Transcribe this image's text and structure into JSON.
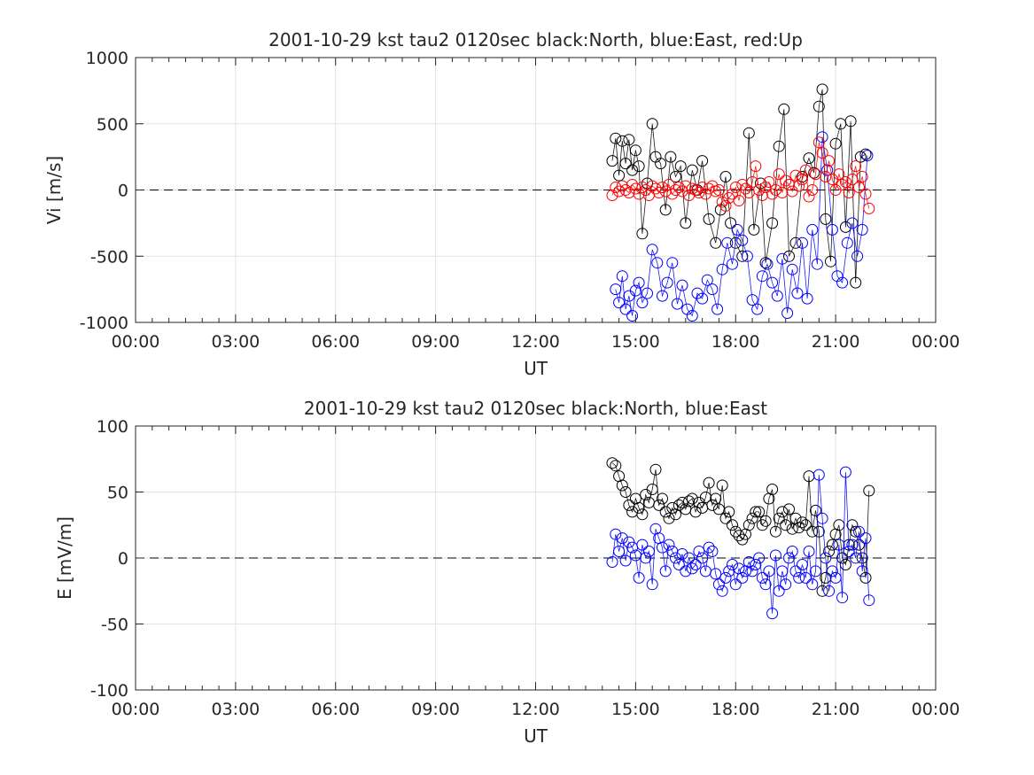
{
  "chart_data": [
    {
      "type": "scatter",
      "title": "2001-10-29 kst tau2 0120sec black:North, blue:East, red:Up",
      "xlabel": "UT",
      "ylabel": "Vi [m/s]",
      "xlim": [
        0,
        24
      ],
      "ylim": [
        -1000,
        1000
      ],
      "x_tick_labels": [
        "00:00",
        "03:00",
        "06:00",
        "09:00",
        "12:00",
        "15:00",
        "18:00",
        "21:00",
        "00:00"
      ],
      "y_ticks": [
        -1000,
        -500,
        0,
        500,
        1000
      ],
      "grid": true,
      "zero_line": "dashed",
      "x_unit": "hours UT",
      "colors": {
        "North": "#000000",
        "East": "#0000ff",
        "Up": "#ff0000"
      },
      "series": [
        {
          "name": "North",
          "color": "#000000",
          "marker": "circle",
          "x": [
            14.3,
            14.4,
            14.5,
            14.6,
            14.7,
            14.8,
            14.9,
            15.0,
            15.1,
            15.2,
            15.35,
            15.5,
            15.6,
            15.75,
            15.9,
            16.05,
            16.2,
            16.35,
            16.5,
            16.7,
            16.85,
            17.0,
            17.2,
            17.4,
            17.55,
            17.7,
            17.85,
            18.0,
            18.2,
            18.4,
            18.55,
            18.75,
            18.9,
            19.1,
            19.3,
            19.45,
            19.6,
            19.8,
            20.0,
            20.2,
            20.35,
            20.5,
            20.6,
            20.7,
            20.85,
            21.0,
            21.15,
            21.3,
            21.45,
            21.6,
            21.75,
            21.9
          ],
          "y": [
            220,
            390,
            110,
            370,
            200,
            380,
            150,
            300,
            180,
            -330,
            50,
            500,
            250,
            200,
            -150,
            250,
            100,
            180,
            -250,
            150,
            0,
            220,
            -220,
            -400,
            -150,
            100,
            -250,
            -400,
            -500,
            430,
            -300,
            50,
            -550,
            -250,
            330,
            610,
            -500,
            -400,
            100,
            240,
            130,
            630,
            760,
            -220,
            -540,
            350,
            500,
            -280,
            520,
            -700,
            250,
            270
          ]
        },
        {
          "name": "East",
          "color": "#0000ff",
          "marker": "circle",
          "x": [
            14.4,
            14.5,
            14.6,
            14.7,
            14.8,
            14.9,
            15.0,
            15.1,
            15.2,
            15.35,
            15.5,
            15.65,
            15.8,
            15.95,
            16.1,
            16.25,
            16.4,
            16.55,
            16.7,
            16.85,
            17.0,
            17.15,
            17.3,
            17.45,
            17.6,
            17.75,
            17.9,
            18.05,
            18.2,
            18.35,
            18.5,
            18.65,
            18.8,
            18.95,
            19.1,
            19.25,
            19.4,
            19.55,
            19.7,
            19.85,
            20.0,
            20.15,
            20.3,
            20.45,
            20.6,
            20.75,
            20.9,
            21.05,
            21.2,
            21.35,
            21.5,
            21.65,
            21.8,
            21.95
          ],
          "y": [
            -750,
            -850,
            -650,
            -900,
            -800,
            -950,
            -760,
            -700,
            -850,
            -780,
            -450,
            -550,
            -800,
            -700,
            -550,
            -860,
            -720,
            -900,
            -950,
            -780,
            -820,
            -680,
            -750,
            -900,
            -600,
            -400,
            -560,
            -300,
            -380,
            -500,
            -830,
            -900,
            -650,
            -560,
            -700,
            -800,
            -520,
            -930,
            -600,
            -780,
            -400,
            -820,
            -300,
            -560,
            400,
            150,
            -300,
            -650,
            -700,
            -400,
            -250,
            -500,
            -300,
            260
          ]
        },
        {
          "name": "Up",
          "color": "#ff0000",
          "marker": "circle",
          "x": [
            14.3,
            14.4,
            14.5,
            14.6,
            14.7,
            14.8,
            14.9,
            15.0,
            15.1,
            15.2,
            15.3,
            15.4,
            15.5,
            15.6,
            15.7,
            15.8,
            15.9,
            16.0,
            16.1,
            16.2,
            16.3,
            16.4,
            16.5,
            16.6,
            16.7,
            16.8,
            16.9,
            17.0,
            17.1,
            17.2,
            17.3,
            17.4,
            17.5,
            17.6,
            17.7,
            17.8,
            17.9,
            18.0,
            18.1,
            18.2,
            18.3,
            18.4,
            18.5,
            18.6,
            18.7,
            18.8,
            18.9,
            19.0,
            19.1,
            19.2,
            19.3,
            19.4,
            19.5,
            19.6,
            19.7,
            19.8,
            19.9,
            20.0,
            20.1,
            20.2,
            20.3,
            20.4,
            20.5,
            20.6,
            20.7,
            20.8,
            20.9,
            21.0,
            21.1,
            21.2,
            21.3,
            21.4,
            21.5,
            21.6,
            21.7,
            21.8,
            21.9,
            22.0
          ],
          "y": [
            -40,
            20,
            -10,
            30,
            0,
            -20,
            40,
            10,
            -30,
            20,
            0,
            -40,
            30,
            10,
            -20,
            20,
            -10,
            40,
            -30,
            0,
            20,
            -10,
            30,
            -40,
            10,
            0,
            -20,
            20,
            -30,
            10,
            30,
            -10,
            0,
            -90,
            -120,
            -60,
            -30,
            20,
            -80,
            40,
            10,
            -20,
            60,
            180,
            0,
            -40,
            20,
            60,
            -30,
            0,
            120,
            -20,
            70,
            40,
            -10,
            110,
            30,
            80,
            150,
            -50,
            0,
            120,
            360,
            280,
            100,
            220,
            80,
            0,
            120,
            40,
            60,
            -20,
            80,
            180,
            20,
            100,
            -30,
            -140
          ]
        }
      ]
    },
    {
      "type": "scatter",
      "title": "2001-10-29 kst tau2 0120sec black:North, blue:East",
      "xlabel": "UT",
      "ylabel": "E [mV/m]",
      "xlim": [
        0,
        24
      ],
      "ylim": [
        -100,
        100
      ],
      "x_tick_labels": [
        "00:00",
        "03:00",
        "06:00",
        "09:00",
        "12:00",
        "15:00",
        "18:00",
        "21:00",
        "00:00"
      ],
      "y_ticks": [
        -100,
        -50,
        0,
        50,
        100
      ],
      "grid": true,
      "zero_line": "dashed",
      "x_unit": "hours UT",
      "colors": {
        "North": "#000000",
        "East": "#0000ff"
      },
      "series": [
        {
          "name": "North",
          "color": "#000000",
          "marker": "circle",
          "x": [
            14.3,
            14.4,
            14.5,
            14.6,
            14.7,
            14.8,
            14.9,
            15.0,
            15.1,
            15.2,
            15.3,
            15.4,
            15.5,
            15.6,
            15.7,
            15.8,
            15.9,
            16.0,
            16.1,
            16.2,
            16.3,
            16.4,
            16.5,
            16.6,
            16.7,
            16.8,
            16.9,
            17.0,
            17.1,
            17.2,
            17.3,
            17.4,
            17.5,
            17.6,
            17.7,
            17.8,
            17.9,
            18.0,
            18.1,
            18.2,
            18.3,
            18.4,
            18.5,
            18.6,
            18.7,
            18.8,
            18.9,
            19.0,
            19.1,
            19.2,
            19.3,
            19.4,
            19.5,
            19.6,
            19.7,
            19.8,
            19.9,
            20.0,
            20.1,
            20.2,
            20.3,
            20.4,
            20.5,
            20.6,
            20.7,
            20.8,
            20.9,
            21.0,
            21.1,
            21.2,
            21.3,
            21.4,
            21.5,
            21.6,
            21.7,
            21.8,
            21.9,
            22.0
          ],
          "y": [
            72,
            70,
            62,
            55,
            50,
            40,
            35,
            45,
            38,
            33,
            48,
            42,
            52,
            67,
            40,
            45,
            35,
            30,
            38,
            33,
            40,
            42,
            37,
            43,
            45,
            35,
            42,
            38,
            46,
            57,
            40,
            45,
            37,
            55,
            30,
            35,
            25,
            20,
            17,
            14,
            18,
            25,
            30,
            35,
            35,
            25,
            28,
            45,
            52,
            20,
            30,
            35,
            25,
            37,
            22,
            30,
            23,
            27,
            25,
            62,
            20,
            36,
            20,
            -25,
            -15,
            5,
            10,
            18,
            25,
            0,
            -5,
            10,
            25,
            20,
            10,
            0,
            -15,
            51
          ]
        },
        {
          "name": "East",
          "color": "#0000ff",
          "marker": "circle",
          "x": [
            14.3,
            14.4,
            14.5,
            14.6,
            14.7,
            14.8,
            14.9,
            15.0,
            15.1,
            15.2,
            15.3,
            15.4,
            15.5,
            15.6,
            15.7,
            15.8,
            15.9,
            16.0,
            16.1,
            16.2,
            16.3,
            16.4,
            16.5,
            16.6,
            16.7,
            16.8,
            16.9,
            17.0,
            17.1,
            17.2,
            17.3,
            17.4,
            17.5,
            17.6,
            17.7,
            17.8,
            17.9,
            18.0,
            18.1,
            18.2,
            18.3,
            18.4,
            18.5,
            18.6,
            18.7,
            18.8,
            18.9,
            19.0,
            19.1,
            19.2,
            19.3,
            19.4,
            19.5,
            19.6,
            19.7,
            19.8,
            19.9,
            20.0,
            20.1,
            20.2,
            20.3,
            20.4,
            20.5,
            20.6,
            20.7,
            20.8,
            20.9,
            21.0,
            21.1,
            21.2,
            21.3,
            21.4,
            21.5,
            21.6,
            21.7,
            21.8,
            21.9,
            22.0
          ],
          "y": [
            -3,
            18,
            5,
            15,
            -2,
            12,
            8,
            2,
            -15,
            10,
            0,
            5,
            -20,
            22,
            15,
            8,
            -10,
            10,
            5,
            0,
            -5,
            3,
            -10,
            0,
            -8,
            -5,
            5,
            0,
            -10,
            8,
            5,
            -12,
            -20,
            -25,
            -15,
            -10,
            -5,
            -20,
            -8,
            -15,
            -10,
            -3,
            -10,
            -5,
            0,
            -15,
            -20,
            -10,
            -42,
            2,
            -25,
            -10,
            -20,
            0,
            5,
            -10,
            -15,
            -5,
            -15,
            5,
            -20,
            -10,
            63,
            30,
            0,
            -25,
            -10,
            -15,
            10,
            -30,
            65,
            5,
            10,
            0,
            20,
            -10,
            15,
            -32
          ]
        }
      ]
    }
  ]
}
